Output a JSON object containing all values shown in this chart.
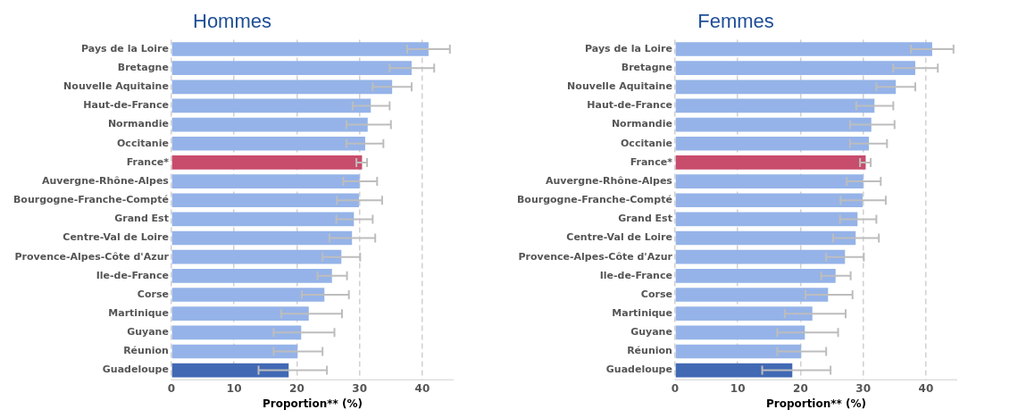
{
  "chart_data": [
    {
      "type": "bar",
      "title": "Hommes",
      "orientation": "horizontal",
      "xlabel": "Proportion** (%)",
      "categories": [
        "Pays de la Loire",
        "Bretagne",
        "Nouvelle Aquitaine",
        "Haut-de-France",
        "Normandie",
        "Occitanie",
        "France*",
        "Auvergne-Rhône-Alpes",
        "Bourgogne-Franche-Compté",
        "Grand Est",
        "Centre-Val de Loire",
        "Provence-Alpes-Côte d'Azur",
        "Ile-de-France",
        "Corse",
        "Martinique",
        "Guyane",
        "Réunion",
        "Guadeloupe"
      ],
      "values": [
        41.0,
        38.3,
        35.2,
        31.8,
        31.3,
        30.9,
        30.4,
        30.0,
        29.9,
        29.1,
        28.8,
        27.1,
        25.6,
        24.4,
        21.9,
        20.7,
        20.1,
        18.7
      ],
      "errors": [
        [
          37.6,
          44.4
        ],
        [
          34.8,
          41.9
        ],
        [
          32.1,
          38.3
        ],
        [
          28.9,
          34.8
        ],
        [
          27.9,
          35.0
        ],
        [
          27.9,
          33.8
        ],
        [
          29.5,
          31.2
        ],
        [
          27.4,
          32.8
        ],
        [
          26.4,
          33.6
        ],
        [
          26.3,
          32.1
        ],
        [
          25.2,
          32.5
        ],
        [
          24.1,
          30.1
        ],
        [
          23.3,
          28.0
        ],
        [
          20.8,
          28.3
        ],
        [
          17.5,
          27.2
        ],
        [
          16.3,
          26.0
        ],
        [
          16.3,
          24.1
        ],
        [
          13.9,
          24.8
        ]
      ],
      "colors": [
        "#95b3e8",
        "#95b3e8",
        "#95b3e8",
        "#95b3e8",
        "#95b3e8",
        "#95b3e8",
        "#c84c6c",
        "#95b3e8",
        "#95b3e8",
        "#95b3e8",
        "#95b3e8",
        "#95b3e8",
        "#95b3e8",
        "#95b3e8",
        "#95b3e8",
        "#95b3e8",
        "#95b3e8",
        "#4169b4"
      ],
      "xlim": [
        0,
        45
      ],
      "xticks": [
        0,
        10,
        20,
        30,
        40
      ],
      "grid": "x",
      "legend": false
    },
    {
      "type": "bar",
      "title": "Femmes",
      "orientation": "horizontal",
      "xlabel": "Proportion** (%)",
      "categories": [
        "Pays de la Loire",
        "Bretagne",
        "Nouvelle Aquitaine",
        "Haut-de-France",
        "Normandie",
        "Occitanie",
        "France*",
        "Auvergne-Rhône-Alpes",
        "Bourgogne-Franche-Compté",
        "Grand Est",
        "Centre-Val de Loire",
        "Provence-Alpes-Côte d'Azur",
        "Ile-de-France",
        "Corse",
        "Martinique",
        "Guyane",
        "Réunion",
        "Guadeloupe"
      ],
      "values": [
        41.0,
        38.3,
        35.2,
        31.8,
        31.3,
        30.9,
        30.4,
        30.0,
        29.9,
        29.1,
        28.8,
        27.1,
        25.6,
        24.4,
        21.9,
        20.7,
        20.1,
        18.7
      ],
      "errors": [
        [
          37.6,
          44.4
        ],
        [
          34.8,
          41.9
        ],
        [
          32.1,
          38.3
        ],
        [
          28.9,
          34.8
        ],
        [
          27.9,
          35.0
        ],
        [
          27.9,
          33.8
        ],
        [
          29.5,
          31.2
        ],
        [
          27.4,
          32.8
        ],
        [
          26.4,
          33.6
        ],
        [
          26.3,
          32.1
        ],
        [
          25.2,
          32.5
        ],
        [
          24.1,
          30.1
        ],
        [
          23.3,
          28.0
        ],
        [
          20.8,
          28.3
        ],
        [
          17.5,
          27.2
        ],
        [
          16.3,
          26.0
        ],
        [
          16.3,
          24.1
        ],
        [
          13.9,
          24.8
        ]
      ],
      "colors": [
        "#95b3e8",
        "#95b3e8",
        "#95b3e8",
        "#95b3e8",
        "#95b3e8",
        "#95b3e8",
        "#c84c6c",
        "#95b3e8",
        "#95b3e8",
        "#95b3e8",
        "#95b3e8",
        "#95b3e8",
        "#95b3e8",
        "#95b3e8",
        "#95b3e8",
        "#95b3e8",
        "#95b3e8",
        "#4169b4"
      ],
      "xlim": [
        0,
        45
      ],
      "xticks": [
        0,
        10,
        20,
        30,
        40
      ],
      "grid": "x",
      "legend": false
    }
  ]
}
